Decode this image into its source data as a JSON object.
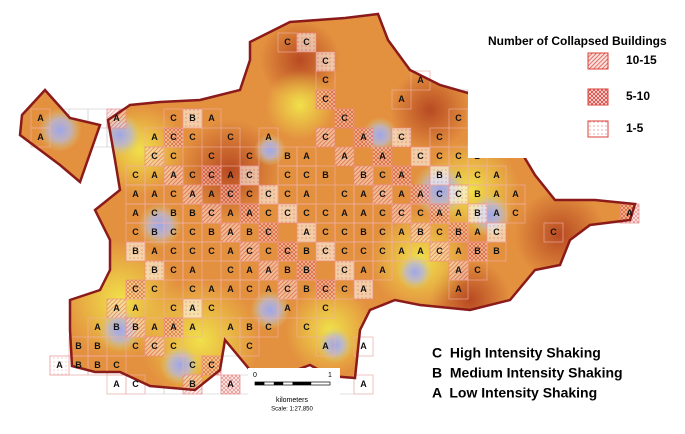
{
  "legend": {
    "title": "Number of Collapsed Buildings",
    "items": [
      "10-15",
      "5-10",
      "1-5"
    ]
  },
  "shaking_key": [
    "C  High Intensity Shaking",
    "B  Medium Intensity Shaking",
    "A  Low Intensity Shaking"
  ],
  "scale_bar": {
    "start": "0",
    "end": "1",
    "unit": "kilometers",
    "scale": "Scale: 1:27,850"
  },
  "grid": {
    "rows": [
      [
        null,
        null,
        null,
        null,
        null,
        null,
        null,
        null,
        null,
        null,
        null,
        null,
        null,
        null,
        null,
        null,
        null,
        null,
        null,
        null,
        null,
        null,
        null,
        null,
        null,
        null,
        null,
        null,
        null,
        null,
        null,
        null,
        null
      ],
      [
        null,
        null,
        null,
        null,
        null,
        null,
        null,
        null,
        null,
        null,
        null,
        null,
        null,
        null,
        "C",
        "C",
        null,
        null,
        null,
        null,
        null,
        null,
        null,
        null,
        null,
        null,
        null,
        null,
        null,
        null,
        null,
        null,
        null
      ],
      [
        null,
        null,
        null,
        null,
        null,
        null,
        null,
        null,
        null,
        null,
        null,
        null,
        null,
        null,
        null,
        null,
        "C",
        null,
        null,
        null,
        null,
        null,
        null,
        null,
        null,
        null,
        null,
        null,
        null,
        null,
        null,
        null,
        null
      ],
      [
        null,
        null,
        null,
        null,
        null,
        null,
        null,
        null,
        null,
        null,
        null,
        null,
        null,
        null,
        null,
        null,
        "C",
        null,
        null,
        null,
        null,
        "A",
        null,
        null,
        null,
        null,
        null,
        null,
        null,
        null,
        null,
        null,
        null
      ],
      [
        null,
        null,
        null,
        null,
        null,
        null,
        null,
        null,
        null,
        null,
        null,
        null,
        null,
        null,
        null,
        null,
        "C",
        null,
        null,
        null,
        "A",
        null,
        null,
        null,
        "C",
        null,
        null,
        null,
        null,
        null,
        null,
        null,
        null
      ],
      [
        null,
        "A",
        null,
        null,
        null,
        "A",
        null,
        null,
        "C",
        "B",
        "A",
        null,
        null,
        null,
        null,
        null,
        null,
        "C",
        null,
        null,
        null,
        null,
        null,
        "C",
        null,
        "A",
        null,
        null,
        null,
        null,
        null,
        null,
        null
      ],
      [
        null,
        "A",
        null,
        null,
        null,
        null,
        null,
        "A",
        "C",
        "C",
        null,
        "C",
        null,
        "A",
        null,
        null,
        "C",
        null,
        "A",
        null,
        "C",
        null,
        "C",
        null,
        "A",
        null,
        null,
        null,
        null,
        null,
        null,
        null,
        null
      ],
      [
        null,
        null,
        null,
        null,
        null,
        null,
        null,
        "C",
        "C",
        null,
        "C",
        null,
        "C",
        null,
        "B",
        "A",
        null,
        "A",
        null,
        "A",
        null,
        "C",
        "C",
        "C",
        "B",
        null,
        null,
        null,
        null,
        null,
        null,
        null,
        null
      ],
      [
        null,
        null,
        null,
        null,
        null,
        null,
        "C",
        "A",
        "A",
        "C",
        "C",
        "A",
        "C",
        null,
        "C",
        "C",
        "B",
        null,
        "B",
        "C",
        "A",
        null,
        "B",
        "A",
        "C",
        "A",
        null,
        null,
        null,
        null,
        null,
        null,
        null
      ],
      [
        null,
        null,
        null,
        null,
        null,
        null,
        "A",
        "A",
        "C",
        "A",
        "A",
        "C",
        "C",
        "C",
        "C",
        "A",
        null,
        "C",
        "A",
        "C",
        "A",
        "A",
        "C",
        "C",
        "B",
        "A",
        "A",
        null,
        null,
        null,
        null,
        null,
        null
      ],
      [
        null,
        null,
        null,
        null,
        null,
        null,
        "A",
        "C",
        "B",
        "B",
        "C",
        "A",
        "A",
        "C",
        "C",
        "C",
        "C",
        "A",
        "A",
        "C",
        "C",
        "C",
        "A",
        "A",
        "B",
        "A",
        "C",
        null,
        null,
        null,
        null,
        null,
        "A"
      ],
      [
        null,
        null,
        null,
        null,
        null,
        null,
        "C",
        "B",
        "C",
        "C",
        "B",
        "A",
        "B",
        "C",
        null,
        "A",
        "C",
        "C",
        "B",
        "C",
        "A",
        "B",
        "C",
        "B",
        "A",
        "C",
        null,
        null,
        "C",
        null,
        null,
        null,
        null
      ],
      [
        null,
        null,
        null,
        null,
        null,
        null,
        "B",
        "A",
        "C",
        "C",
        "C",
        "A",
        "C",
        "C",
        "C",
        "B",
        "C",
        "C",
        "C",
        "C",
        "A",
        "A",
        "C",
        "A",
        "B",
        "B",
        null,
        null,
        null,
        null,
        null,
        null,
        null
      ],
      [
        null,
        null,
        null,
        null,
        null,
        null,
        null,
        "B",
        "C",
        "A",
        null,
        "C",
        "A",
        "A",
        "B",
        "B",
        null,
        "C",
        "A",
        "A",
        null,
        null,
        null,
        "A",
        "C",
        null,
        null,
        null,
        null,
        null,
        null,
        null,
        null
      ],
      [
        null,
        null,
        null,
        null,
        null,
        null,
        "C",
        "C",
        null,
        "C",
        "A",
        "A",
        "C",
        "A",
        "C",
        "B",
        "C",
        "C",
        "A",
        null,
        null,
        null,
        null,
        "A",
        null,
        null,
        null,
        null,
        null,
        null,
        null,
        null,
        null
      ],
      [
        null,
        null,
        null,
        null,
        null,
        "A",
        "A",
        null,
        "C",
        "A",
        "C",
        null,
        null,
        null,
        "A",
        null,
        "C",
        null,
        null,
        null,
        null,
        null,
        null,
        null,
        null,
        null,
        null,
        null,
        null,
        null,
        null,
        null,
        null
      ],
      [
        null,
        null,
        null,
        null,
        "A",
        "B",
        "B",
        "A",
        "A",
        "A",
        null,
        "A",
        "B",
        "C",
        null,
        "C",
        null,
        null,
        null,
        null,
        null,
        null,
        null,
        null,
        null,
        null,
        null,
        null,
        null,
        null,
        null,
        null,
        null
      ],
      [
        null,
        null,
        null,
        "B",
        "B",
        null,
        "C",
        "C",
        "C",
        null,
        null,
        null,
        "C",
        null,
        null,
        null,
        "A",
        null,
        "A",
        null,
        null,
        null,
        null,
        null,
        null,
        null,
        null,
        null,
        null,
        null,
        null,
        null,
        null
      ],
      [
        null,
        null,
        "A",
        "B",
        "B",
        "C",
        null,
        null,
        null,
        "C",
        "C",
        null,
        null,
        null,
        null,
        null,
        null,
        null,
        null,
        null,
        null,
        null,
        null,
        null,
        null,
        null,
        null,
        null,
        null,
        null,
        null,
        null,
        null
      ],
      [
        null,
        null,
        null,
        null,
        null,
        "A",
        "C",
        null,
        null,
        "B",
        null,
        "A",
        null,
        null,
        null,
        null,
        null,
        null,
        "A",
        null,
        null,
        null,
        null,
        null,
        null,
        null,
        null,
        null,
        null,
        null,
        null,
        null,
        null
      ],
      [
        null,
        null,
        null,
        null,
        null,
        null,
        null,
        null,
        null,
        null,
        null,
        null,
        null,
        null,
        null,
        null,
        null,
        null,
        null,
        null,
        null,
        null,
        null,
        null,
        null,
        null,
        null,
        null,
        null,
        null,
        null,
        null,
        null
      ]
    ]
  }
}
